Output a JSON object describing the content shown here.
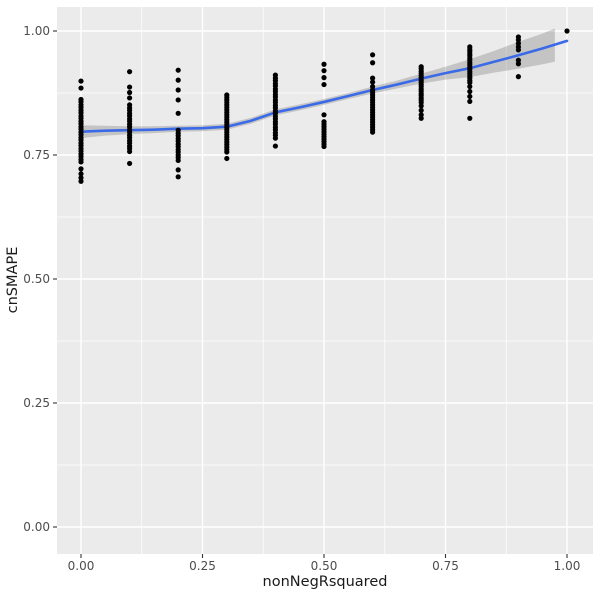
{
  "figure": {
    "background": "#FFFFFF",
    "panel_background": "#EBEBEB",
    "grid_color": "#FFFFFF",
    "axis_text_color": "#4D4D4D",
    "axis_title_color": "#1A1A1A",
    "tick_mark_color": "#333333",
    "point_color": "#000000",
    "smooth_line_color": "#3B6AE8",
    "ribbon_color": "rgba(96,96,96,0.28)"
  },
  "chart_data": {
    "type": "scatter",
    "title": "",
    "xlabel": "nonNegRsquared",
    "ylabel": "cnSMAPE",
    "xlim": [
      -0.049,
      1.053
    ],
    "ylim": [
      -0.054,
      1.048
    ],
    "grid": true,
    "legend_position": "none",
    "x_ticks": {
      "values": [
        0,
        0.25,
        0.5,
        0.75,
        1.0
      ],
      "labels": [
        "0.00",
        "0.25",
        "0.50",
        "0.75",
        "1.00"
      ]
    },
    "y_ticks": {
      "values": [
        0,
        0.25,
        0.5,
        0.75,
        1.0
      ],
      "labels": [
        "0.00",
        "0.25",
        "0.50",
        "0.75",
        "1.00"
      ]
    },
    "x_minor": [
      0.125,
      0.375,
      0.625,
      0.875
    ],
    "y_minor": [
      0.125,
      0.375,
      0.625,
      0.875
    ],
    "point_groups": [
      {
        "x": 0.0,
        "y": [
          0.899,
          0.885,
          0.862,
          0.857,
          0.851,
          0.846,
          0.84,
          0.835,
          0.829,
          0.824,
          0.818,
          0.813,
          0.807,
          0.802,
          0.796,
          0.791,
          0.785,
          0.78,
          0.774,
          0.769,
          0.763,
          0.758,
          0.752,
          0.747,
          0.741,
          0.736,
          0.722,
          0.712,
          0.704,
          0.697
        ]
      },
      {
        "x": 0.1,
        "y": [
          0.918,
          0.887,
          0.876,
          0.865,
          0.851,
          0.845,
          0.84,
          0.834,
          0.829,
          0.823,
          0.818,
          0.812,
          0.807,
          0.801,
          0.796,
          0.79,
          0.785,
          0.779,
          0.774,
          0.768,
          0.763,
          0.757,
          0.733
        ]
      },
      {
        "x": 0.2,
        "y": [
          0.921,
          0.901,
          0.881,
          0.861,
          0.834,
          0.8,
          0.794,
          0.789,
          0.783,
          0.778,
          0.772,
          0.767,
          0.761,
          0.756,
          0.75,
          0.745,
          0.739,
          0.72,
          0.706
        ]
      },
      {
        "x": 0.3,
        "y": [
          0.871,
          0.866,
          0.861,
          0.856,
          0.851,
          0.846,
          0.841,
          0.836,
          0.831,
          0.826,
          0.821,
          0.816,
          0.811,
          0.806,
          0.801,
          0.796,
          0.791,
          0.786,
          0.781,
          0.776,
          0.771,
          0.766,
          0.761,
          0.756,
          0.743
        ]
      },
      {
        "x": 0.4,
        "y": [
          0.911,
          0.905,
          0.9,
          0.894,
          0.889,
          0.883,
          0.878,
          0.872,
          0.867,
          0.861,
          0.856,
          0.85,
          0.845,
          0.839,
          0.834,
          0.828,
          0.823,
          0.817,
          0.812,
          0.806,
          0.801,
          0.795,
          0.79,
          0.784,
          0.768
        ]
      },
      {
        "x": 0.5,
        "y": [
          0.933,
          0.92,
          0.906,
          0.892,
          0.831,
          0.817,
          0.812,
          0.807,
          0.802,
          0.797,
          0.792,
          0.787,
          0.782,
          0.777,
          0.772,
          0.767
        ]
      },
      {
        "x": 0.6,
        "y": [
          0.952,
          0.936,
          0.905,
          0.897,
          0.888,
          0.881,
          0.876,
          0.871,
          0.866,
          0.861,
          0.856,
          0.851,
          0.846,
          0.841,
          0.836,
          0.831,
          0.826,
          0.821,
          0.816,
          0.811,
          0.806,
          0.801,
          0.796
        ]
      },
      {
        "x": 0.7,
        "y": [
          0.928,
          0.924,
          0.919,
          0.915,
          0.91,
          0.906,
          0.901,
          0.897,
          0.892,
          0.888,
          0.883,
          0.879,
          0.874,
          0.87,
          0.865,
          0.861,
          0.856,
          0.849,
          0.84,
          0.831,
          0.824
        ]
      },
      {
        "x": 0.8,
        "y": [
          0.968,
          0.963,
          0.959,
          0.954,
          0.95,
          0.945,
          0.941,
          0.936,
          0.932,
          0.927,
          0.923,
          0.918,
          0.914,
          0.909,
          0.905,
          0.9,
          0.896,
          0.888,
          0.878,
          0.868,
          0.858,
          0.824
        ]
      },
      {
        "x": 0.9,
        "y": [
          0.988,
          0.982,
          0.975,
          0.968,
          0.962,
          0.941,
          0.934,
          0.908
        ]
      },
      {
        "x": 1.0,
        "y": [
          1.0
        ]
      }
    ],
    "smooth_line": {
      "x": [
        0.0,
        0.05,
        0.1,
        0.15,
        0.2,
        0.25,
        0.3,
        0.35,
        0.4,
        0.45,
        0.5,
        0.55,
        0.6,
        0.65,
        0.7,
        0.75,
        0.8,
        0.85,
        0.9,
        0.95,
        1.0
      ],
      "y": [
        0.797,
        0.799,
        0.8,
        0.801,
        0.803,
        0.804,
        0.807,
        0.819,
        0.836,
        0.846,
        0.857,
        0.869,
        0.881,
        0.892,
        0.904,
        0.915,
        0.925,
        0.938,
        0.951,
        0.965,
        0.98
      ]
    },
    "ribbon": {
      "x": [
        0.0,
        0.05,
        0.1,
        0.15,
        0.2,
        0.25,
        0.3,
        0.35,
        0.4,
        0.45,
        0.5,
        0.55,
        0.6,
        0.65,
        0.7,
        0.75,
        0.8,
        0.85,
        0.9,
        0.95,
        0.975
      ],
      "upper": [
        0.81,
        0.809,
        0.808,
        0.808,
        0.809,
        0.81,
        0.813,
        0.825,
        0.842,
        0.852,
        0.863,
        0.875,
        0.888,
        0.9,
        0.914,
        0.928,
        0.943,
        0.96,
        0.978,
        0.995,
        1.005
      ],
      "lower": [
        0.784,
        0.789,
        0.792,
        0.794,
        0.797,
        0.798,
        0.801,
        0.813,
        0.83,
        0.84,
        0.851,
        0.863,
        0.874,
        0.884,
        0.894,
        0.902,
        0.907,
        0.916,
        0.924,
        0.933,
        0.938
      ]
    }
  }
}
